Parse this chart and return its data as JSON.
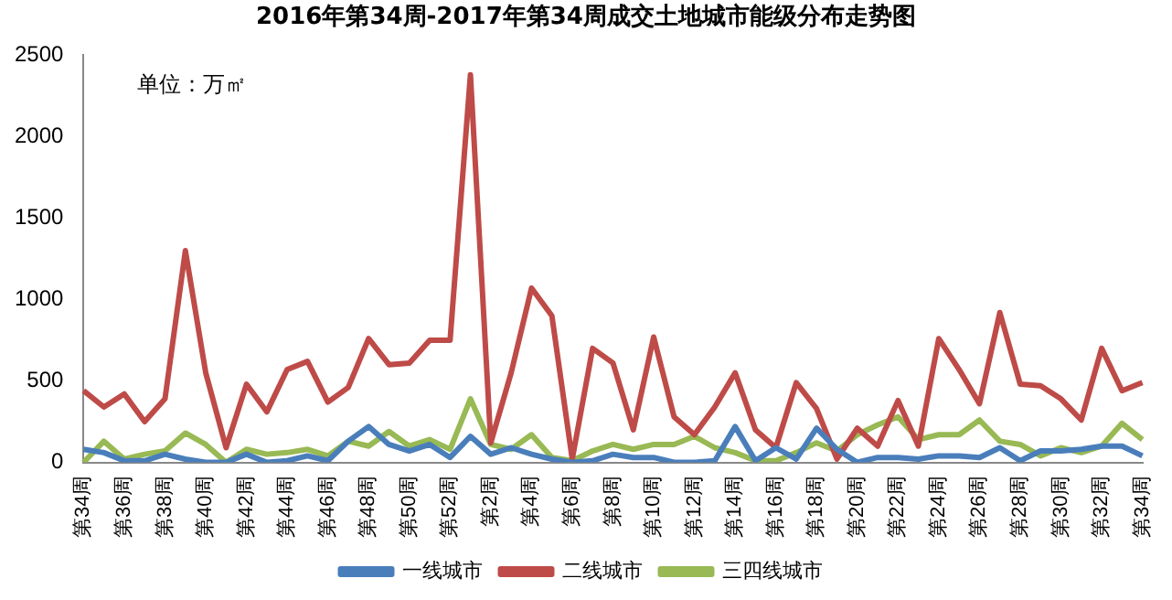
{
  "chart_data": {
    "type": "line",
    "title": "2016年第34周-2017年第34周成交土地城市能级分布走势图",
    "annotations": [
      "单位：万㎡"
    ],
    "categories": [
      "第34周",
      null,
      "第36周",
      null,
      "第38周",
      null,
      "第40周",
      null,
      "第42周",
      null,
      "第44周",
      null,
      "第46周",
      null,
      "第48周",
      null,
      "第50周",
      null,
      "第52周",
      null,
      "第2周",
      null,
      "第4周",
      null,
      "第6周",
      null,
      "第8周",
      null,
      "第10周",
      null,
      "第12周",
      null,
      "第14周",
      null,
      "第16周",
      null,
      "第18周",
      null,
      "第20周",
      null,
      "第22周",
      null,
      "第24周",
      null,
      "第26周",
      null,
      "第28周",
      null,
      "第30周",
      null,
      "第32周",
      null,
      "第34周"
    ],
    "series": [
      {
        "name": "一线城市",
        "color": "#4a7ebb",
        "values": [
          80,
          60,
          10,
          10,
          50,
          20,
          0,
          0,
          50,
          0,
          10,
          40,
          10,
          130,
          220,
          110,
          70,
          110,
          30,
          160,
          50,
          90,
          50,
          20,
          0,
          10,
          50,
          30,
          30,
          0,
          0,
          10,
          220,
          10,
          90,
          20,
          210,
          80,
          0,
          30,
          30,
          20,
          40,
          40,
          30,
          90,
          10,
          70,
          70,
          80,
          100,
          100,
          40
        ]
      },
      {
        "name": "二线城市",
        "color": "#be4b48",
        "values": [
          440,
          340,
          420,
          250,
          390,
          1300,
          550,
          90,
          480,
          310,
          570,
          620,
          370,
          460,
          760,
          600,
          610,
          750,
          750,
          2380,
          120,
          550,
          1070,
          900,
          20,
          700,
          610,
          200,
          770,
          280,
          170,
          340,
          550,
          200,
          90,
          490,
          330,
          20,
          210,
          100,
          380,
          100,
          760,
          570,
          360,
          920,
          480,
          470,
          390,
          260,
          700,
          440,
          490
        ]
      },
      {
        "name": "三四线城市",
        "color": "#98b954",
        "values": [
          0,
          130,
          20,
          50,
          70,
          180,
          110,
          0,
          80,
          50,
          60,
          80,
          40,
          130,
          100,
          190,
          100,
          140,
          80,
          390,
          110,
          80,
          170,
          30,
          10,
          70,
          110,
          80,
          110,
          110,
          160,
          90,
          60,
          10,
          10,
          60,
          120,
          70,
          170,
          230,
          280,
          140,
          170,
          170,
          260,
          130,
          110,
          40,
          90,
          60,
          100,
          240,
          140
        ]
      }
    ],
    "ylim": [
      0,
      2500
    ],
    "yticks": [
      0,
      500,
      1000,
      1500,
      2000,
      2500
    ],
    "grid": false,
    "legend": "bottom",
    "marker": "none",
    "line_style": "solid"
  }
}
